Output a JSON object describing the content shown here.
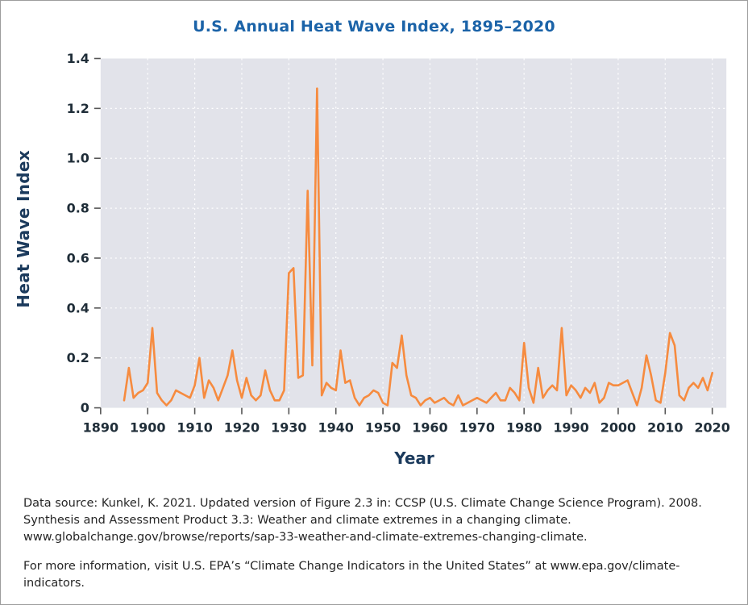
{
  "page": {
    "title": "U.S. Annual Heat Wave Index, 1895–2020"
  },
  "colors": {
    "title_blue": "#1b63a8",
    "axis_label_blue": "#1b3a5c",
    "tick_label": "#1f2d38",
    "line_orange": "#f68b3f",
    "plot_background": "#e2e3ea",
    "gridline_white": "#ffffff",
    "footer_text": "#262626"
  },
  "chart_data": {
    "type": "line",
    "title": "U.S. Annual Heat Wave Index, 1895–2020",
    "xlabel": "Year",
    "ylabel": "Heat Wave Index",
    "xlim": [
      1890,
      2023
    ],
    "ylim": [
      0,
      1.4
    ],
    "xticks": [
      1890,
      1900,
      1910,
      1920,
      1930,
      1940,
      1950,
      1960,
      1970,
      1980,
      1990,
      2000,
      2010,
      2020
    ],
    "yticks": [
      0,
      0.2,
      0.4,
      0.6,
      0.8,
      1.0,
      1.2,
      1.4
    ],
    "grid": "dotted white gridlines on gray plot background",
    "legend": "none",
    "line_color": "#f68b3f",
    "plot_bg": "#e2e3ea",
    "grid_color": "#ffffff",
    "tick_color": "#1f2d38",
    "x": [
      1895,
      1896,
      1897,
      1898,
      1899,
      1900,
      1901,
      1902,
      1903,
      1904,
      1905,
      1906,
      1907,
      1908,
      1909,
      1910,
      1911,
      1912,
      1913,
      1914,
      1915,
      1916,
      1917,
      1918,
      1919,
      1920,
      1921,
      1922,
      1923,
      1924,
      1925,
      1926,
      1927,
      1928,
      1929,
      1930,
      1931,
      1932,
      1933,
      1934,
      1935,
      1936,
      1937,
      1938,
      1939,
      1940,
      1941,
      1942,
      1943,
      1944,
      1945,
      1946,
      1947,
      1948,
      1949,
      1950,
      1951,
      1952,
      1953,
      1954,
      1955,
      1956,
      1957,
      1958,
      1959,
      1960,
      1961,
      1962,
      1963,
      1964,
      1965,
      1966,
      1967,
      1968,
      1969,
      1970,
      1971,
      1972,
      1973,
      1974,
      1975,
      1976,
      1977,
      1978,
      1979,
      1980,
      1981,
      1982,
      1983,
      1984,
      1985,
      1986,
      1987,
      1988,
      1989,
      1990,
      1991,
      1992,
      1993,
      1994,
      1995,
      1996,
      1997,
      1998,
      1999,
      2000,
      2001,
      2002,
      2003,
      2004,
      2005,
      2006,
      2007,
      2008,
      2009,
      2010,
      2011,
      2012,
      2013,
      2014,
      2015,
      2016,
      2017,
      2018,
      2019,
      2020
    ],
    "y": [
      0.03,
      0.16,
      0.04,
      0.06,
      0.07,
      0.1,
      0.32,
      0.06,
      0.03,
      0.01,
      0.03,
      0.07,
      0.06,
      0.05,
      0.04,
      0.09,
      0.2,
      0.04,
      0.11,
      0.08,
      0.03,
      0.08,
      0.13,
      0.23,
      0.11,
      0.04,
      0.12,
      0.05,
      0.03,
      0.05,
      0.15,
      0.07,
      0.03,
      0.03,
      0.07,
      0.54,
      0.56,
      0.12,
      0.13,
      0.87,
      0.17,
      1.28,
      0.05,
      0.1,
      0.08,
      0.07,
      0.23,
      0.1,
      0.11,
      0.04,
      0.01,
      0.04,
      0.05,
      0.07,
      0.06,
      0.02,
      0.01,
      0.18,
      0.16,
      0.29,
      0.13,
      0.05,
      0.04,
      0.01,
      0.03,
      0.04,
      0.02,
      0.03,
      0.04,
      0.02,
      0.01,
      0.05,
      0.01,
      0.02,
      0.03,
      0.04,
      0.03,
      0.02,
      0.04,
      0.06,
      0.03,
      0.03,
      0.08,
      0.06,
      0.03,
      0.26,
      0.08,
      0.02,
      0.16,
      0.04,
      0.07,
      0.09,
      0.07,
      0.32,
      0.05,
      0.09,
      0.07,
      0.04,
      0.08,
      0.06,
      0.1,
      0.02,
      0.04,
      0.1,
      0.09,
      0.09,
      0.1,
      0.11,
      0.06,
      0.01,
      0.08,
      0.21,
      0.13,
      0.03,
      0.02,
      0.14,
      0.3,
      0.25,
      0.05,
      0.03,
      0.08,
      0.1,
      0.08,
      0.12,
      0.07,
      0.14
    ]
  },
  "footer": {
    "source": "Data source: Kunkel, K. 2021. Updated version of Figure 2.3 in: CCSP (U.S. Climate Change Science Program). 2008. Synthesis and Assessment Product 3.3: Weather and climate extremes in a changing climate. www.globalchange.gov/browse/reports/sap-33-weather-and-climate-extremes-changing-climate.",
    "more_info": "For more information, visit U.S. EPA’s “Climate Change Indicators in the United States” at www.epa.gov/climate-indicators."
  }
}
